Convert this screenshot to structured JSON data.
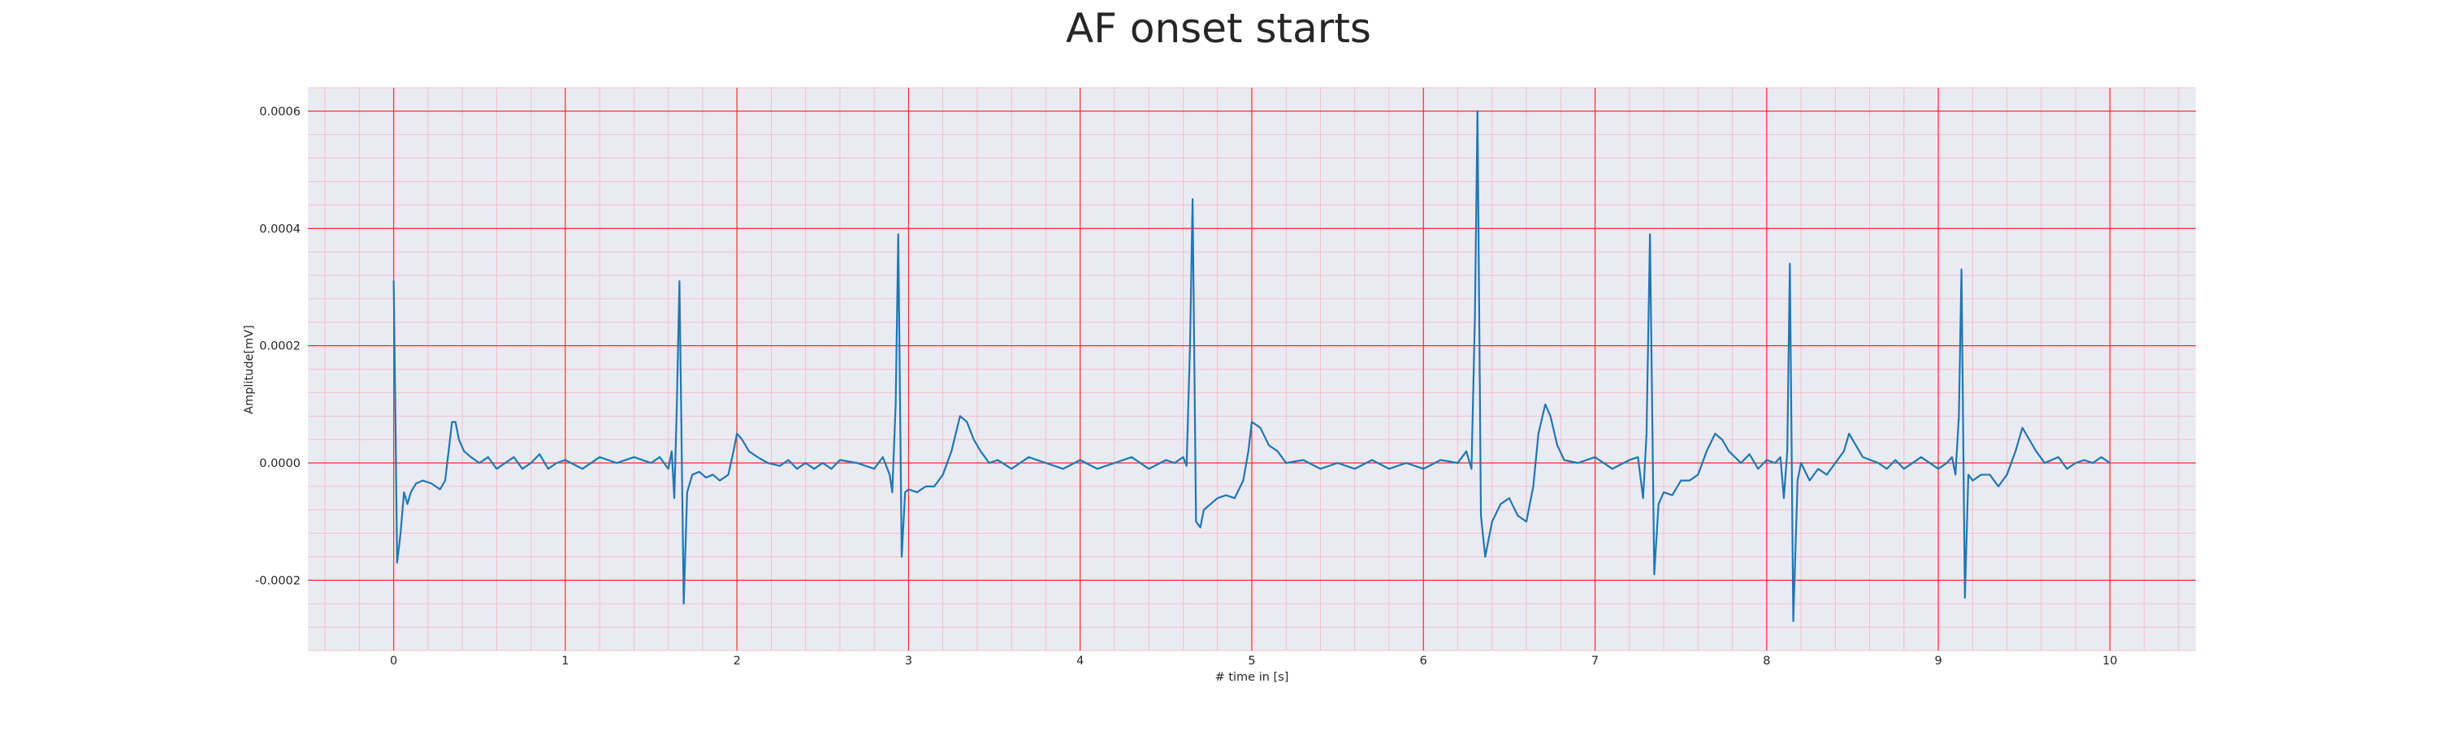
{
  "chart_data": {
    "type": "line",
    "title": "AF onset starts",
    "xlabel": "# time in [s]",
    "ylabel": "Amplitude[mV]",
    "xlim": [
      -0.5,
      10.5
    ],
    "ylim": [
      -0.00032,
      0.00064
    ],
    "x_ticks": [
      0,
      1,
      2,
      3,
      4,
      5,
      6,
      7,
      8,
      9,
      10
    ],
    "x_tick_labels": [
      "0",
      "1",
      "2",
      "3",
      "4",
      "5",
      "6",
      "7",
      "8",
      "9",
      "10"
    ],
    "y_ticks": [
      -0.0002,
      0.0,
      0.0002,
      0.0004,
      0.0006
    ],
    "y_tick_labels": [
      "-0.0002",
      "0.0000",
      "0.0002",
      "0.0004",
      "0.0006"
    ],
    "grid": {
      "major": true,
      "minor": true,
      "x_minor_step": 0.2,
      "y_minor_step": 4e-05
    },
    "colors": {
      "background": "#eaeaf2",
      "line": "#1f77b4",
      "major_grid": "#ff2a2a",
      "minor_grid": "#f6b4bf",
      "text": "#262626"
    },
    "series": [
      {
        "values": [
          [
            0.0,
            0.00031
          ],
          [
            0.01,
            8e-05
          ],
          [
            0.02,
            -0.00017
          ],
          [
            0.04,
            -0.00012
          ],
          [
            0.06,
            -5e-05
          ],
          [
            0.08,
            -7e-05
          ],
          [
            0.1,
            -5e-05
          ],
          [
            0.13,
            -3.5e-05
          ],
          [
            0.17,
            -3e-05
          ],
          [
            0.22,
            -3.5e-05
          ],
          [
            0.27,
            -4.5e-05
          ],
          [
            0.3,
            -3e-05
          ],
          [
            0.32,
            2e-05
          ],
          [
            0.34,
            7e-05
          ],
          [
            0.36,
            7e-05
          ],
          [
            0.38,
            4e-05
          ],
          [
            0.41,
            2e-05
          ],
          [
            0.45,
            1e-05
          ],
          [
            0.5,
            0.0
          ],
          [
            0.55,
            1e-05
          ],
          [
            0.6,
            -1e-05
          ],
          [
            0.65,
            0.0
          ],
          [
            0.7,
            1e-05
          ],
          [
            0.75,
            -1e-05
          ],
          [
            0.8,
            0.0
          ],
          [
            0.85,
            1.5e-05
          ],
          [
            0.9,
            -1e-05
          ],
          [
            0.95,
            0.0
          ],
          [
            1.0,
            5e-06
          ],
          [
            1.1,
            -1e-05
          ],
          [
            1.2,
            1e-05
          ],
          [
            1.3,
            0.0
          ],
          [
            1.4,
            1e-05
          ],
          [
            1.5,
            0.0
          ],
          [
            1.55,
            1e-05
          ],
          [
            1.6,
            -1e-05
          ],
          [
            1.62,
            2e-05
          ],
          [
            1.635,
            -6e-05
          ],
          [
            1.65,
            0.0001
          ],
          [
            1.665,
            0.00031
          ],
          [
            1.69,
            -0.00024
          ],
          [
            1.71,
            -5e-05
          ],
          [
            1.74,
            -2e-05
          ],
          [
            1.78,
            -1.5e-05
          ],
          [
            1.82,
            -2.5e-05
          ],
          [
            1.86,
            -2e-05
          ],
          [
            1.9,
            -3e-05
          ],
          [
            1.95,
            -2e-05
          ],
          [
            1.98,
            2e-05
          ],
          [
            2.0,
            5e-05
          ],
          [
            2.03,
            4e-05
          ],
          [
            2.07,
            2e-05
          ],
          [
            2.12,
            1e-05
          ],
          [
            2.18,
            0.0
          ],
          [
            2.25,
            -5e-06
          ],
          [
            2.3,
            5e-06
          ],
          [
            2.35,
            -1e-05
          ],
          [
            2.4,
            0.0
          ],
          [
            2.45,
            -1e-05
          ],
          [
            2.5,
            0.0
          ],
          [
            2.55,
            -1e-05
          ],
          [
            2.6,
            5e-06
          ],
          [
            2.7,
            0.0
          ],
          [
            2.8,
            -1e-05
          ],
          [
            2.85,
            1e-05
          ],
          [
            2.89,
            -2e-05
          ],
          [
            2.905,
            -5e-05
          ],
          [
            2.925,
            0.0001
          ],
          [
            2.94,
            0.00039
          ],
          [
            2.96,
            -0.00016
          ],
          [
            2.98,
            -5e-05
          ],
          [
            3.0,
            -4.5e-05
          ],
          [
            3.05,
            -5e-05
          ],
          [
            3.1,
            -4e-05
          ],
          [
            3.15,
            -4e-05
          ],
          [
            3.2,
            -2e-05
          ],
          [
            3.25,
            2e-05
          ],
          [
            3.3,
            8e-05
          ],
          [
            3.34,
            7e-05
          ],
          [
            3.38,
            4e-05
          ],
          [
            3.42,
            2e-05
          ],
          [
            3.47,
            0.0
          ],
          [
            3.52,
            5e-06
          ],
          [
            3.6,
            -1e-05
          ],
          [
            3.7,
            1e-05
          ],
          [
            3.8,
            0.0
          ],
          [
            3.9,
            -1e-05
          ],
          [
            4.0,
            5e-06
          ],
          [
            4.1,
            -1e-05
          ],
          [
            4.2,
            0.0
          ],
          [
            4.3,
            1e-05
          ],
          [
            4.4,
            -1e-05
          ],
          [
            4.5,
            5e-06
          ],
          [
            4.55,
            0.0
          ],
          [
            4.6,
            1e-05
          ],
          [
            4.62,
            -5e-06
          ],
          [
            4.64,
            0.0002
          ],
          [
            4.655,
            0.00045
          ],
          [
            4.675,
            -0.0001
          ],
          [
            4.7,
            -0.00011
          ],
          [
            4.72,
            -8e-05
          ],
          [
            4.76,
            -7e-05
          ],
          [
            4.8,
            -6e-05
          ],
          [
            4.85,
            -5.5e-05
          ],
          [
            4.9,
            -6e-05
          ],
          [
            4.95,
            -3e-05
          ],
          [
            4.98,
            2e-05
          ],
          [
            5.0,
            7e-05
          ],
          [
            5.05,
            6e-05
          ],
          [
            5.1,
            3e-05
          ],
          [
            5.15,
            2e-05
          ],
          [
            5.2,
            0.0
          ],
          [
            5.3,
            5e-06
          ],
          [
            5.4,
            -1e-05
          ],
          [
            5.5,
            0.0
          ],
          [
            5.6,
            -1e-05
          ],
          [
            5.7,
            5e-06
          ],
          [
            5.8,
            -1e-05
          ],
          [
            5.9,
            0.0
          ],
          [
            6.0,
            -1e-05
          ],
          [
            6.1,
            5e-06
          ],
          [
            6.2,
            0.0
          ],
          [
            6.25,
            2e-05
          ],
          [
            6.28,
            -1e-05
          ],
          [
            6.3,
            0.00025
          ],
          [
            6.315,
            0.0006
          ],
          [
            6.335,
            -9e-05
          ],
          [
            6.36,
            -0.00016
          ],
          [
            6.4,
            -0.0001
          ],
          [
            6.45,
            -7e-05
          ],
          [
            6.5,
            -6e-05
          ],
          [
            6.55,
            -9e-05
          ],
          [
            6.6,
            -0.0001
          ],
          [
            6.64,
            -4e-05
          ],
          [
            6.67,
            5e-05
          ],
          [
            6.71,
            0.0001
          ],
          [
            6.74,
            8e-05
          ],
          [
            6.78,
            3e-05
          ],
          [
            6.82,
            5e-06
          ],
          [
            6.9,
            0.0
          ],
          [
            7.0,
            1e-05
          ],
          [
            7.1,
            -1e-05
          ],
          [
            7.2,
            5e-06
          ],
          [
            7.25,
            1e-05
          ],
          [
            7.28,
            -6e-05
          ],
          [
            7.3,
            5e-05
          ],
          [
            7.32,
            0.00039
          ],
          [
            7.345,
            -0.00019
          ],
          [
            7.37,
            -7e-05
          ],
          [
            7.4,
            -5e-05
          ],
          [
            7.45,
            -5.5e-05
          ],
          [
            7.5,
            -3e-05
          ],
          [
            7.55,
            -3e-05
          ],
          [
            7.6,
            -2e-05
          ],
          [
            7.65,
            2e-05
          ],
          [
            7.7,
            5e-05
          ],
          [
            7.74,
            4e-05
          ],
          [
            7.78,
            2e-05
          ],
          [
            7.85,
            0.0
          ],
          [
            7.9,
            1.5e-05
          ],
          [
            7.95,
            -1e-05
          ],
          [
            8.0,
            5e-06
          ],
          [
            8.05,
            0.0
          ],
          [
            8.08,
            1e-05
          ],
          [
            8.1,
            -6e-05
          ],
          [
            8.12,
            2e-05
          ],
          [
            8.135,
            0.00034
          ],
          [
            8.155,
            -0.00027
          ],
          [
            8.18,
            -3e-05
          ],
          [
            8.2,
            0.0
          ],
          [
            8.25,
            -3e-05
          ],
          [
            8.3,
            -1e-05
          ],
          [
            8.35,
            -2e-05
          ],
          [
            8.4,
            0.0
          ],
          [
            8.45,
            2e-05
          ],
          [
            8.48,
            5e-05
          ],
          [
            8.52,
            3e-05
          ],
          [
            8.56,
            1e-05
          ],
          [
            8.65,
            0.0
          ],
          [
            8.7,
            -1e-05
          ],
          [
            8.75,
            5e-06
          ],
          [
            8.8,
            -1e-05
          ],
          [
            8.9,
            1e-05
          ],
          [
            9.0,
            -1e-05
          ],
          [
            9.05,
            0.0
          ],
          [
            9.08,
            1e-05
          ],
          [
            9.1,
            -2e-05
          ],
          [
            9.12,
            8e-05
          ],
          [
            9.135,
            0.00033
          ],
          [
            9.155,
            -0.00023
          ],
          [
            9.175,
            -2e-05
          ],
          [
            9.2,
            -3e-05
          ],
          [
            9.25,
            -2e-05
          ],
          [
            9.3,
            -2e-05
          ],
          [
            9.35,
            -4e-05
          ],
          [
            9.4,
            -2e-05
          ],
          [
            9.45,
            2e-05
          ],
          [
            9.49,
            6e-05
          ],
          [
            9.53,
            4e-05
          ],
          [
            9.57,
            2e-05
          ],
          [
            9.62,
            0.0
          ],
          [
            9.7,
            1e-05
          ],
          [
            9.75,
            -1e-05
          ],
          [
            9.8,
            0.0
          ],
          [
            9.85,
            5e-06
          ],
          [
            9.9,
            0.0
          ],
          [
            9.95,
            1e-05
          ],
          [
            10.0,
            0.0
          ]
        ]
      }
    ]
  }
}
